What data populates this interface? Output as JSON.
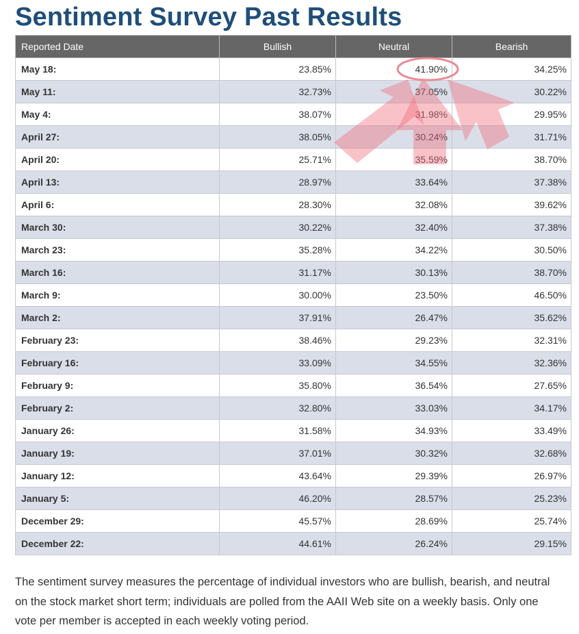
{
  "header": {
    "title": "Sentiment Survey Past Results"
  },
  "table": {
    "columns": [
      "Reported Date",
      "Bullish",
      "Neutral",
      "Bearish"
    ],
    "rows": [
      [
        "May 18:",
        "23.85%",
        "41.90%",
        "34.25%"
      ],
      [
        "May 11:",
        "32.73%",
        "37.05%",
        "30.22%"
      ],
      [
        "May 4:",
        "38.07%",
        "31.98%",
        "29.95%"
      ],
      [
        "April 27:",
        "38.05%",
        "30.24%",
        "31.71%"
      ],
      [
        "April 20:",
        "25.71%",
        "35.59%",
        "38.70%"
      ],
      [
        "April 13:",
        "28.97%",
        "33.64%",
        "37.38%"
      ],
      [
        "April 6:",
        "28.30%",
        "32.08%",
        "39.62%"
      ],
      [
        "March 30:",
        "30.22%",
        "32.40%",
        "37.38%"
      ],
      [
        "March 23:",
        "35.28%",
        "34.22%",
        "30.50%"
      ],
      [
        "March 16:",
        "31.17%",
        "30.13%",
        "38.70%"
      ],
      [
        "March 9:",
        "30.00%",
        "23.50%",
        "46.50%"
      ],
      [
        "March 2:",
        "37.91%",
        "26.47%",
        "35.62%"
      ],
      [
        "February 23:",
        "38.46%",
        "29.23%",
        "32.31%"
      ],
      [
        "February 16:",
        "33.09%",
        "34.55%",
        "32.36%"
      ],
      [
        "February 9:",
        "35.80%",
        "36.54%",
        "27.65%"
      ],
      [
        "February 2:",
        "32.80%",
        "33.03%",
        "34.17%"
      ],
      [
        "January 26:",
        "31.58%",
        "34.93%",
        "33.49%"
      ],
      [
        "January 19:",
        "37.01%",
        "30.32%",
        "32.68%"
      ],
      [
        "January 12:",
        "43.64%",
        "29.39%",
        "26.97%"
      ],
      [
        "January 5:",
        "46.20%",
        "28.57%",
        "25.23%"
      ],
      [
        "December 29:",
        "45.57%",
        "28.69%",
        "25.74%"
      ],
      [
        "December 22:",
        "44.61%",
        "26.24%",
        "29.15%"
      ]
    ]
  },
  "footnote": "The sentiment survey measures the percentage of individual investors who are bullish, bearish, and neutral on the stock market short term; individuals are polled from the AAII Web site on a weekly basis. Only one vote per member is accepted in each weekly voting period."
}
